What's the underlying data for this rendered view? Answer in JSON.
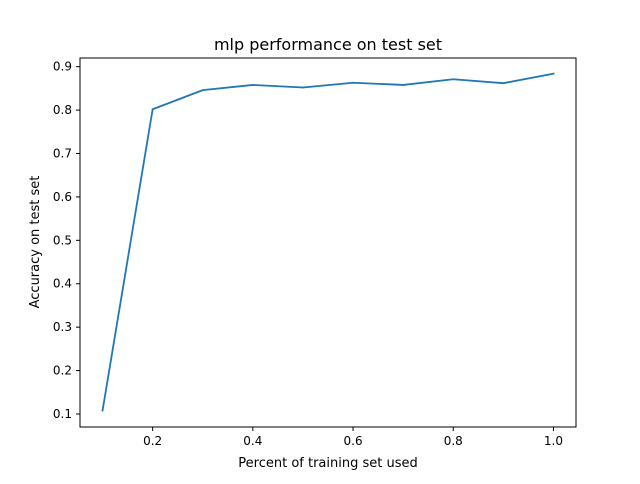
{
  "chart_data": {
    "type": "line",
    "title": "mlp performance on test set",
    "xlabel": "Percent of training set used",
    "ylabel": "Accuracy on test set",
    "xlim": [
      0.055,
      1.045
    ],
    "ylim": [
      0.07,
      0.92
    ],
    "xticks": [
      0.2,
      0.4,
      0.6,
      0.8,
      1.0
    ],
    "xtick_labels": [
      "0.2",
      "0.4",
      "0.6",
      "0.8",
      "1.0"
    ],
    "yticks": [
      0.1,
      0.2,
      0.3,
      0.4,
      0.5,
      0.6,
      0.7,
      0.8,
      0.9
    ],
    "ytick_labels": [
      "0.1",
      "0.2",
      "0.3",
      "0.4",
      "0.5",
      "0.6",
      "0.7",
      "0.8",
      "0.9"
    ],
    "grid": false,
    "series": [
      {
        "color": "#1f77b4",
        "x": [
          0.1,
          0.2,
          0.3,
          0.4,
          0.5,
          0.6,
          0.7,
          0.8,
          0.9,
          1.0
        ],
        "y": [
          0.108,
          0.802,
          0.846,
          0.858,
          0.852,
          0.863,
          0.858,
          0.871,
          0.862,
          0.884
        ]
      }
    ]
  }
}
